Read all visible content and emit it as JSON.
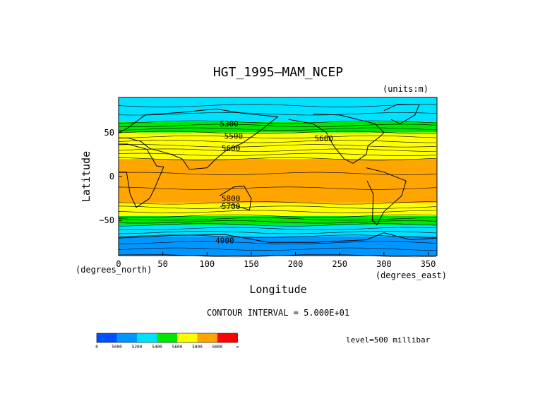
{
  "chart_data": {
    "type": "heatmap",
    "title": "HGT_1995—MAM_NCEP",
    "units_note": "(units:m)",
    "xlabel": "Longitude",
    "ylabel": "Latitude",
    "x_unit_note": "(degrees_east)",
    "y_unit_note": "(degrees_north)",
    "xlim": [
      0,
      360
    ],
    "ylim": [
      -90,
      90
    ],
    "x_ticks": [
      0,
      50,
      100,
      150,
      200,
      250,
      300,
      350
    ],
    "y_ticks": [
      -50,
      0,
      50
    ],
    "contour_interval_text": "CONTOUR INTERVAL = 5.000E+01",
    "level_text": "level=500 millibar",
    "contour_labels": [
      {
        "text": "5300",
        "lon": 125,
        "lat": 57
      },
      {
        "text": "5500",
        "lon": 130,
        "lat": 43
      },
      {
        "text": "5600",
        "lon": 127,
        "lat": 29
      },
      {
        "text": "5600",
        "lon": 232,
        "lat": 40
      },
      {
        "text": "5800",
        "lon": 127,
        "lat": -28
      },
      {
        "text": "5700",
        "lon": 127,
        "lat": -37
      },
      {
        "text": "4900",
        "lon": 120,
        "lat": -76
      }
    ],
    "levels_bands": [
      {
        "lat_from": 90,
        "lat_to": 62,
        "value": 5200
      },
      {
        "lat_from": 62,
        "lat_to": 50,
        "value": 5400
      },
      {
        "lat_from": 50,
        "lat_to": 35,
        "value": 5600
      },
      {
        "lat_from": 35,
        "lat_to": 20,
        "value": 5700
      },
      {
        "lat_from": 20,
        "lat_to": -30,
        "value": 5800
      },
      {
        "lat_from": -30,
        "lat_to": -45,
        "value": 5600
      },
      {
        "lat_from": -45,
        "lat_to": -55,
        "value": 5400
      },
      {
        "lat_from": -55,
        "lat_to": -68,
        "value": 5200
      },
      {
        "lat_from": -68,
        "lat_to": -90,
        "value": 5000
      }
    ],
    "colorbar": {
      "colors": [
        "#0050ff",
        "#0096ff",
        "#00e1ff",
        "#00e600",
        "#ffff00",
        "#ffa500",
        "#ff0000"
      ],
      "labels": [
        "0",
        "5000",
        "5200",
        "5400",
        "5600",
        "5800",
        "6000",
        "∞"
      ]
    },
    "contour_color": "#000000"
  }
}
